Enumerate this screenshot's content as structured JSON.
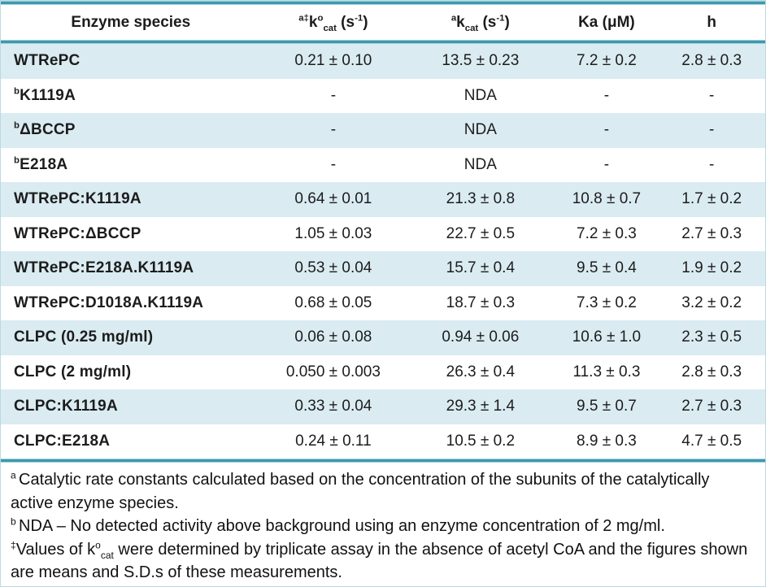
{
  "colors": {
    "accent_teal_border": "#3E98AC",
    "band_light_blue": "#DAEBF2",
    "text": "#1C1C1C"
  },
  "table": {
    "headers": [
      [
        {
          "t": "Enzyme species"
        }
      ],
      [
        {
          "t": "a‡",
          "s": "sup"
        },
        {
          "t": "k"
        },
        {
          "t": "o",
          "s": "sup"
        },
        {
          "t": "cat",
          "s": "sub"
        },
        {
          "t": " (s"
        },
        {
          "t": "-1",
          "s": "sup"
        },
        {
          "t": ")"
        }
      ],
      [
        {
          "t": "a",
          "s": "sup"
        },
        {
          "t": "k"
        },
        {
          "t": "cat",
          "s": "sub"
        },
        {
          "t": " (s"
        },
        {
          "t": "-1",
          "s": "sup"
        },
        {
          "t": ")"
        }
      ],
      [
        {
          "t": "Ka (μM)"
        }
      ],
      [
        {
          "t": "h"
        }
      ]
    ],
    "rows": [
      {
        "label": [
          {
            "t": "WTRePC"
          }
        ],
        "values": [
          "0.21 ± 0.10",
          "13.5 ± 0.23",
          "7.2 ± 0.2",
          "2.8 ± 0.3"
        ]
      },
      {
        "label": [
          {
            "t": "b",
            "s": "sup"
          },
          {
            "t": "K1119A"
          }
        ],
        "values": [
          "-",
          "NDA",
          "-",
          "-"
        ]
      },
      {
        "label": [
          {
            "t": "b",
            "s": "sup"
          },
          {
            "t": "ΔBCCP"
          }
        ],
        "values": [
          "-",
          "NDA",
          "-",
          "-"
        ]
      },
      {
        "label": [
          {
            "t": "b",
            "s": "sup"
          },
          {
            "t": "E218A"
          }
        ],
        "values": [
          "-",
          "NDA",
          "-",
          "-"
        ]
      },
      {
        "label": [
          {
            "t": "WTRePC:K1119A"
          }
        ],
        "values": [
          "0.64 ± 0.01",
          "21.3 ± 0.8",
          "10.8 ± 0.7",
          "1.7 ± 0.2"
        ]
      },
      {
        "label": [
          {
            "t": "WTRePC:ΔBCCP"
          }
        ],
        "values": [
          "1.05 ± 0.03",
          "22.7 ± 0.5",
          "7.2 ± 0.3",
          "2.7 ± 0.3"
        ]
      },
      {
        "label": [
          {
            "t": "WTRePC:E218A.K1119A"
          }
        ],
        "values": [
          "0.53 ± 0.04",
          "15.7 ± 0.4",
          "9.5 ± 0.4",
          "1.9 ± 0.2"
        ]
      },
      {
        "label": [
          {
            "t": "WTRePC:D1018A.K1119A"
          }
        ],
        "values": [
          "0.68 ± 0.05",
          "18.7 ± 0.3",
          "7.3 ± 0.2",
          "3.2 ± 0.2"
        ]
      },
      {
        "label": [
          {
            "t": "CLPC (0.25 mg/ml)"
          }
        ],
        "values": [
          "0.06 ± 0.08",
          "0.94 ± 0.06",
          "10.6 ± 1.0",
          "2.3 ± 0.5"
        ]
      },
      {
        "label": [
          {
            "t": "CLPC (2 mg/ml)"
          }
        ],
        "values": [
          "0.050 ± 0.003",
          "26.3 ± 0.4",
          "11.3 ± 0.3",
          "2.8 ± 0.3"
        ]
      },
      {
        "label": [
          {
            "t": "CLPC:K1119A"
          }
        ],
        "values": [
          "0.33 ± 0.04",
          "29.3 ± 1.4",
          "9.5 ± 0.7",
          "2.7 ± 0.3"
        ]
      },
      {
        "label": [
          {
            "t": "CLPC:E218A"
          }
        ],
        "values": [
          "0.24 ± 0.11",
          "10.5 ± 0.2",
          "8.9 ± 0.3",
          "4.7 ± 0.5"
        ]
      }
    ]
  },
  "footnotes": [
    [
      {
        "t": "a ",
        "s": "sup"
      },
      {
        "t": "Catalytic rate constants calculated based on the concentration of the subunits of the catalytically active enzyme species."
      }
    ],
    [
      {
        "t": "b ",
        "s": "sup"
      },
      {
        "t": "NDA – No detected activity above background using an enzyme concentration of 2 mg/ml."
      }
    ],
    [
      {
        "t": "‡",
        "s": "sup"
      },
      {
        "t": "Values of k"
      },
      {
        "t": "o",
        "s": "sup"
      },
      {
        "t": "cat",
        "s": "sub"
      },
      {
        "t": " were determined by triplicate assay in the absence of acetyl CoA and the figures shown are means and S.D.s of these measurements."
      }
    ]
  ]
}
